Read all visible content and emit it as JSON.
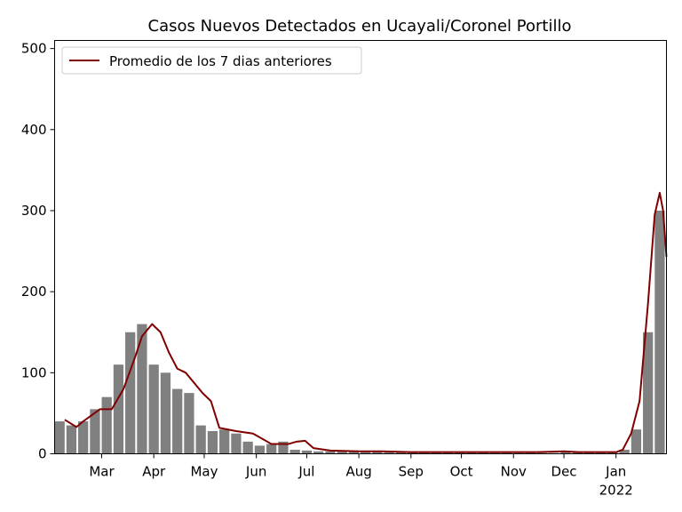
{
  "chart_data": {
    "type": "bar",
    "title": "Casos Nuevos Detectados en Ucayali/Coronel Portillo",
    "xlabel": "",
    "ylabel": "",
    "ylim": [
      0,
      510
    ],
    "yticks": [
      0,
      100,
      200,
      300,
      400,
      500
    ],
    "xlim": [
      "2021-02-01",
      "2022-01-31"
    ],
    "xticks": [
      {
        "date": "2021-03-01",
        "label": "Mar"
      },
      {
        "date": "2021-04-01",
        "label": "Apr"
      },
      {
        "date": "2021-05-01",
        "label": "May"
      },
      {
        "date": "2021-06-01",
        "label": "Jun"
      },
      {
        "date": "2021-07-01",
        "label": "Jul"
      },
      {
        "date": "2021-08-01",
        "label": "Aug"
      },
      {
        "date": "2021-09-01",
        "label": "Sep"
      },
      {
        "date": "2021-10-01",
        "label": "Oct"
      },
      {
        "date": "2021-11-01",
        "label": "Nov"
      },
      {
        "date": "2021-12-01",
        "label": "Dec"
      },
      {
        "date": "2022-01-01",
        "label": "Jan"
      }
    ],
    "xtick_year_label": "2022",
    "legend": {
      "placement": "upper-left",
      "entries": [
        "Promedio de los 7 dias anteriores"
      ]
    },
    "grid": false,
    "colors": {
      "bars": "#808080",
      "line": "#800000"
    },
    "series": [
      {
        "kind": "bar",
        "unit": "weekly mean of daily new cases",
        "x": [
          "2021-02-04",
          "2021-02-11",
          "2021-02-18",
          "2021-02-25",
          "2021-03-04",
          "2021-03-11",
          "2021-03-18",
          "2021-03-25",
          "2021-04-01",
          "2021-04-08",
          "2021-04-15",
          "2021-04-22",
          "2021-04-29",
          "2021-05-06",
          "2021-05-13",
          "2021-05-20",
          "2021-05-27",
          "2021-06-03",
          "2021-06-10",
          "2021-06-17",
          "2021-06-24",
          "2021-07-01",
          "2021-07-08",
          "2021-07-15",
          "2021-07-22",
          "2021-07-29",
          "2021-08-05",
          "2021-08-12",
          "2021-08-19",
          "2021-08-26",
          "2021-09-02",
          "2021-09-09",
          "2021-09-16",
          "2021-09-23",
          "2021-09-30",
          "2021-10-07",
          "2021-10-14",
          "2021-10-21",
          "2021-10-28",
          "2021-11-04",
          "2021-11-11",
          "2021-11-18",
          "2021-11-25",
          "2021-12-02",
          "2021-12-09",
          "2021-12-16",
          "2021-12-23",
          "2021-12-30",
          "2022-01-06",
          "2022-01-13",
          "2022-01-20",
          "2022-01-27"
        ],
        "values": [
          40,
          35,
          40,
          55,
          70,
          110,
          150,
          160,
          110,
          100,
          80,
          75,
          35,
          28,
          30,
          25,
          15,
          10,
          12,
          15,
          5,
          4,
          3,
          3,
          3,
          4,
          3,
          3,
          2,
          3,
          2,
          2,
          2,
          2,
          2,
          2,
          2,
          1,
          1,
          1,
          2,
          1,
          1,
          3,
          2,
          2,
          2,
          2,
          5,
          30,
          150,
          300
        ]
      },
      {
        "kind": "line",
        "name": "Promedio de los 7 dias anteriores",
        "x": [
          "2021-02-07",
          "2021-02-14",
          "2021-02-18",
          "2021-02-28",
          "2021-03-07",
          "2021-03-14",
          "2021-03-21",
          "2021-03-25",
          "2021-03-31",
          "2021-04-05",
          "2021-04-10",
          "2021-04-15",
          "2021-04-20",
          "2021-04-30",
          "2021-05-05",
          "2021-05-10",
          "2021-05-20",
          "2021-05-30",
          "2021-06-05",
          "2021-06-10",
          "2021-06-20",
          "2021-06-25",
          "2021-06-30",
          "2021-07-05",
          "2021-07-15",
          "2021-08-01",
          "2021-08-15",
          "2021-09-01",
          "2021-09-15",
          "2021-10-01",
          "2021-10-15",
          "2021-11-01",
          "2021-11-15",
          "2021-12-01",
          "2021-12-10",
          "2021-12-20",
          "2022-01-01",
          "2022-01-05",
          "2022-01-10",
          "2022-01-15",
          "2022-01-20",
          "2022-01-24",
          "2022-01-27",
          "2022-01-29",
          "2022-01-31"
        ],
        "values": [
          42,
          33,
          40,
          55,
          55,
          80,
          120,
          145,
          160,
          150,
          125,
          105,
          100,
          75,
          65,
          32,
          28,
          25,
          18,
          12,
          12,
          15,
          16,
          7,
          4,
          3,
          3,
          2,
          2,
          2,
          2,
          2,
          2,
          3,
          2,
          2,
          2,
          5,
          25,
          65,
          185,
          295,
          322,
          300,
          243
        ]
      }
    ]
  }
}
